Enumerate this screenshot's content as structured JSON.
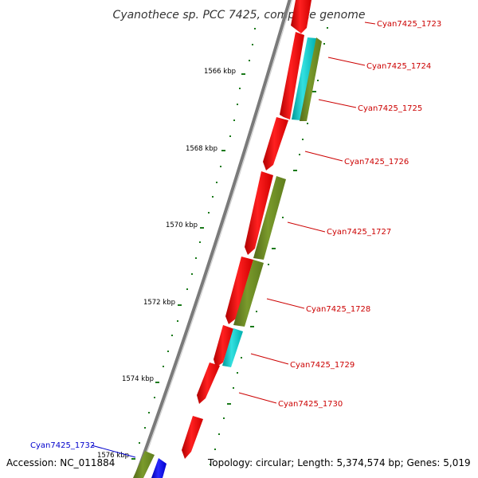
{
  "title": "Cyanothece sp. PCC 7425, complete genome",
  "accession": "Accession: NC_011884",
  "topology": "Topology: circular; Length: 5,374,574 bp; Genes: 5,019",
  "ticks": [
    "1566 kbp",
    "1568 kbp",
    "1570 kbp",
    "1572 kbp",
    "1574 kbp",
    "1576 kbp"
  ],
  "genes": [
    {
      "label": "Cyan7425_1723",
      "color": "#ff0000"
    },
    {
      "label": "Cyan7425_1724",
      "color": "#00c8c8"
    },
    {
      "label": "Cyan7425_1725",
      "color": "#6b8e23"
    },
    {
      "label": "Cyan7425_1726",
      "color": "#ff0000"
    },
    {
      "label": "Cyan7425_1727",
      "color": "#6b8e23"
    },
    {
      "label": "Cyan7425_1728",
      "color": "#ff0000"
    },
    {
      "label": "Cyan7425_1729",
      "color": "#00c8c8"
    },
    {
      "label": "Cyan7425_1730",
      "color": "#ff0000"
    },
    {
      "label": "Cyan7425_1732",
      "color": "#6b8e23"
    }
  ],
  "colors": {
    "cds": "#ff0000",
    "rna": "#00c8c8",
    "other": "#6b8e23",
    "highlight": "#0000ff",
    "backbone": "#808080",
    "tick": "#006400",
    "label_red": "#cc0000",
    "label_blue": "#0000cc"
  }
}
